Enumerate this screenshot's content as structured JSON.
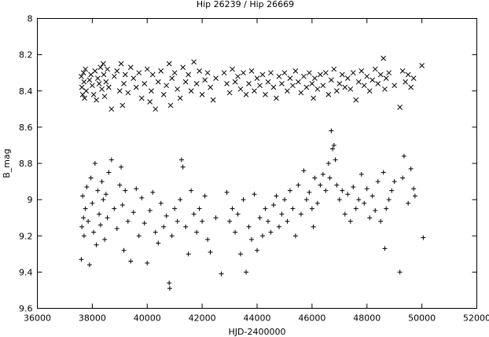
{
  "chart_data": {
    "type": "scatter",
    "title": "Hip 26239 / Hip 26669",
    "xlabel": "HJD-2400000",
    "ylabel": "B_mag",
    "xlim": [
      36000,
      52000
    ],
    "ylim": [
      8,
      9.6
    ],
    "y_inverted": true,
    "grid": false,
    "legend": "none",
    "xticks": [
      "36000",
      "38000",
      "40000",
      "42000",
      "44000",
      "46000",
      "48000",
      "50000",
      "52000"
    ],
    "yticks": [
      "8",
      "8.2",
      "8.4",
      "8.6",
      "8.8",
      "9",
      "9.2",
      "9.4",
      "9.6"
    ],
    "series": [
      {
        "marker": "x",
        "points": [
          [
            37600,
            8.32
          ],
          [
            37620,
            8.38
          ],
          [
            37650,
            8.42
          ],
          [
            37680,
            8.3
          ],
          [
            37700,
            8.35
          ],
          [
            37720,
            8.44
          ],
          [
            37750,
            8.28
          ],
          [
            37780,
            8.4
          ],
          [
            37900,
            8.34
          ],
          [
            37950,
            8.31
          ],
          [
            38000,
            8.37
          ],
          [
            38050,
            8.42
          ],
          [
            38100,
            8.29
          ],
          [
            38150,
            8.45
          ],
          [
            38200,
            8.33
          ],
          [
            38250,
            8.36
          ],
          [
            38300,
            8.27
          ],
          [
            38350,
            8.39
          ],
          [
            38400,
            8.25
          ],
          [
            38420,
            8.31
          ],
          [
            38450,
            8.43
          ],
          [
            38500,
            8.35
          ],
          [
            38550,
            8.28
          ],
          [
            38600,
            8.38
          ],
          [
            38700,
            8.5
          ],
          [
            38800,
            8.32
          ],
          [
            38900,
            8.29
          ],
          [
            39000,
            8.4
          ],
          [
            39050,
            8.25
          ],
          [
            39100,
            8.48
          ],
          [
            39150,
            8.36
          ],
          [
            39200,
            8.31
          ],
          [
            39300,
            8.41
          ],
          [
            39400,
            8.27
          ],
          [
            39500,
            8.33
          ],
          [
            39600,
            8.38
          ],
          [
            39700,
            8.3
          ],
          [
            39800,
            8.44
          ],
          [
            39900,
            8.36
          ],
          [
            40000,
            8.28
          ],
          [
            40100,
            8.46
          ],
          [
            40150,
            8.4
          ],
          [
            40200,
            8.31
          ],
          [
            40300,
            8.5
          ],
          [
            40400,
            8.35
          ],
          [
            40500,
            8.29
          ],
          [
            40600,
            8.42
          ],
          [
            40700,
            8.37
          ],
          [
            40800,
            8.25
          ],
          [
            40850,
            8.48
          ],
          [
            40900,
            8.33
          ],
          [
            41000,
            8.3
          ],
          [
            41100,
            8.39
          ],
          [
            41200,
            8.44
          ],
          [
            41300,
            8.27
          ],
          [
            41400,
            8.35
          ],
          [
            41500,
            8.31
          ],
          [
            41600,
            8.4
          ],
          [
            41700,
            8.24
          ],
          [
            41800,
            8.36
          ],
          [
            41900,
            8.29
          ],
          [
            42000,
            8.42
          ],
          [
            42100,
            8.34
          ],
          [
            42200,
            8.3
          ],
          [
            42300,
            8.38
          ],
          [
            42400,
            8.45
          ],
          [
            42500,
            8.33
          ],
          [
            42800,
            8.3
          ],
          [
            42900,
            8.36
          ],
          [
            43000,
            8.41
          ],
          [
            43100,
            8.28
          ],
          [
            43200,
            8.35
          ],
          [
            43300,
            8.32
          ],
          [
            43400,
            8.39
          ],
          [
            43500,
            8.3
          ],
          [
            43600,
            8.42
          ],
          [
            43700,
            8.36
          ],
          [
            43800,
            8.29
          ],
          [
            43900,
            8.4
          ],
          [
            44000,
            8.33
          ],
          [
            44100,
            8.37
          ],
          [
            44200,
            8.31
          ],
          [
            44300,
            8.42
          ],
          [
            44400,
            8.35
          ],
          [
            44500,
            8.3
          ],
          [
            44600,
            8.38
          ],
          [
            44700,
            8.44
          ],
          [
            44800,
            8.32
          ],
          [
            44900,
            8.36
          ],
          [
            45000,
            8.3
          ],
          [
            45100,
            8.4
          ],
          [
            45200,
            8.33
          ],
          [
            45300,
            8.37
          ],
          [
            45400,
            8.29
          ],
          [
            45500,
            8.35
          ],
          [
            45600,
            8.41
          ],
          [
            45700,
            8.32
          ],
          [
            45800,
            8.38
          ],
          [
            45900,
            8.3
          ],
          [
            46000,
            8.36
          ],
          [
            46050,
            8.44
          ],
          [
            46100,
            8.33
          ],
          [
            46200,
            8.39
          ],
          [
            46300,
            8.31
          ],
          [
            46400,
            8.37
          ],
          [
            46500,
            8.3
          ],
          [
            46600,
            8.42
          ],
          [
            46700,
            8.34
          ],
          [
            46800,
            8.28
          ],
          [
            46900,
            8.4
          ],
          [
            47000,
            8.36
          ],
          [
            47100,
            8.31
          ],
          [
            47200,
            8.38
          ],
          [
            47300,
            8.33
          ],
          [
            47400,
            8.39
          ],
          [
            47500,
            8.3
          ],
          [
            47600,
            8.45
          ],
          [
            47700,
            8.35
          ],
          [
            47800,
            8.29
          ],
          [
            47900,
            8.37
          ],
          [
            48000,
            8.32
          ],
          [
            48100,
            8.4
          ],
          [
            48200,
            8.34
          ],
          [
            48300,
            8.28
          ],
          [
            48400,
            8.36
          ],
          [
            48500,
            8.31
          ],
          [
            48600,
            8.22
          ],
          [
            48650,
            8.39
          ],
          [
            48700,
            8.33
          ],
          [
            48800,
            8.3
          ],
          [
            49000,
            8.37
          ],
          [
            49200,
            8.49
          ],
          [
            49300,
            8.29
          ],
          [
            49400,
            8.35
          ],
          [
            49500,
            8.31
          ],
          [
            49600,
            8.38
          ],
          [
            49700,
            8.33
          ],
          [
            50000,
            8.26
          ]
        ]
      },
      {
        "marker": "+",
        "points": [
          [
            37600,
            9.33
          ],
          [
            37620,
            9.15
          ],
          [
            37650,
            8.98
          ],
          [
            37680,
            9.1
          ],
          [
            37700,
            9.2
          ],
          [
            37750,
            9.05
          ],
          [
            37800,
            8.93
          ],
          [
            37850,
            9.12
          ],
          [
            37900,
            9.36
          ],
          [
            37950,
            8.88
          ],
          [
            38000,
            9.02
          ],
          [
            38050,
            9.18
          ],
          [
            38100,
            8.8
          ],
          [
            38150,
            9.25
          ],
          [
            38200,
            8.95
          ],
          [
            38250,
            9.08
          ],
          [
            38300,
            9.14
          ],
          [
            38350,
            8.9
          ],
          [
            38400,
            9.0
          ],
          [
            38450,
            9.22
          ],
          [
            38500,
            8.97
          ],
          [
            38550,
            9.1
          ],
          [
            38600,
            8.85
          ],
          [
            38700,
            8.78
          ],
          [
            38800,
            9.05
          ],
          [
            38900,
            9.16
          ],
          [
            39000,
            8.92
          ],
          [
            39050,
            8.82
          ],
          [
            39100,
            9.03
          ],
          [
            39150,
            9.28
          ],
          [
            39200,
            8.95
          ],
          [
            39300,
            9.12
          ],
          [
            39400,
            9.34
          ],
          [
            39500,
            9.07
          ],
          [
            39600,
            8.94
          ],
          [
            39700,
            9.2
          ],
          [
            39800,
            8.99
          ],
          [
            39900,
            9.13
          ],
          [
            40000,
            9.35
          ],
          [
            40100,
            9.06
          ],
          [
            40200,
            8.96
          ],
          [
            40300,
            9.18
          ],
          [
            40400,
            9.24
          ],
          [
            40500,
            9.02
          ],
          [
            40600,
            9.15
          ],
          [
            40700,
            9.09
          ],
          [
            40800,
            9.46
          ],
          [
            40820,
            9.49
          ],
          [
            40900,
            9.2
          ],
          [
            41000,
            9.05
          ],
          [
            41100,
            9.12
          ],
          [
            41200,
            9.0
          ],
          [
            41250,
            8.78
          ],
          [
            41300,
            8.82
          ],
          [
            41400,
            9.15
          ],
          [
            41500,
            9.3
          ],
          [
            41600,
            8.95
          ],
          [
            41700,
            9.08
          ],
          [
            41800,
            9.18
          ],
          [
            41900,
            9.05
          ],
          [
            42000,
            9.12
          ],
          [
            42100,
            8.98
          ],
          [
            42200,
            9.22
          ],
          [
            42300,
            9.29
          ],
          [
            42500,
            9.1
          ],
          [
            42700,
            9.41
          ],
          [
            42900,
            8.96
          ],
          [
            43000,
            9.12
          ],
          [
            43100,
            9.05
          ],
          [
            43200,
            9.18
          ],
          [
            43300,
            9.08
          ],
          [
            43400,
            9.3
          ],
          [
            43500,
            9.0
          ],
          [
            43600,
            9.4
          ],
          [
            43700,
            9.15
          ],
          [
            43800,
            9.22
          ],
          [
            43900,
            8.97
          ],
          [
            44000,
            9.28
          ],
          [
            44100,
            9.1
          ],
          [
            44200,
            9.2
          ],
          [
            44300,
            9.05
          ],
          [
            44400,
            9.12
          ],
          [
            44500,
            9.18
          ],
          [
            44600,
            9.03
          ],
          [
            44700,
            8.98
          ],
          [
            44800,
            9.15
          ],
          [
            44900,
            9.08
          ],
          [
            45000,
            9.0
          ],
          [
            45100,
            9.12
          ],
          [
            45200,
            8.95
          ],
          [
            45300,
            9.05
          ],
          [
            45400,
            9.2
          ],
          [
            45500,
            8.92
          ],
          [
            45600,
            9.08
          ],
          [
            45700,
            8.84
          ],
          [
            45800,
            9.0
          ],
          [
            45900,
            8.96
          ],
          [
            46000,
            9.05
          ],
          [
            46050,
            9.15
          ],
          [
            46100,
            8.88
          ],
          [
            46200,
            9.02
          ],
          [
            46300,
            8.92
          ],
          [
            46400,
            8.86
          ],
          [
            46500,
            8.95
          ],
          [
            46600,
            8.8
          ],
          [
            46650,
            8.88
          ],
          [
            46700,
            8.62
          ],
          [
            46750,
            8.72
          ],
          [
            46800,
            8.7
          ],
          [
            46850,
            8.78
          ],
          [
            46900,
            8.92
          ],
          [
            47000,
            9.0
          ],
          [
            47100,
            8.95
          ],
          [
            47200,
            9.08
          ],
          [
            47300,
            8.97
          ],
          [
            47400,
            9.12
          ],
          [
            47500,
            8.93
          ],
          [
            47600,
            9.05
          ],
          [
            47700,
            9.0
          ],
          [
            47800,
            8.86
          ],
          [
            47900,
            9.02
          ],
          [
            48000,
            8.94
          ],
          [
            48100,
            9.1
          ],
          [
            48200,
            8.98
          ],
          [
            48300,
            9.06
          ],
          [
            48400,
            8.9
          ],
          [
            48500,
            9.12
          ],
          [
            48600,
            8.85
          ],
          [
            48650,
            9.27
          ],
          [
            48700,
            9.05
          ],
          [
            48800,
            9.0
          ],
          [
            48900,
            8.95
          ],
          [
            49000,
            8.9
          ],
          [
            49200,
            9.4
          ],
          [
            49300,
            8.88
          ],
          [
            49350,
            8.76
          ],
          [
            49500,
            9.02
          ],
          [
            49600,
            8.83
          ],
          [
            49700,
            8.94
          ],
          [
            49750,
            8.98
          ],
          [
            50050,
            9.21
          ]
        ]
      }
    ]
  }
}
